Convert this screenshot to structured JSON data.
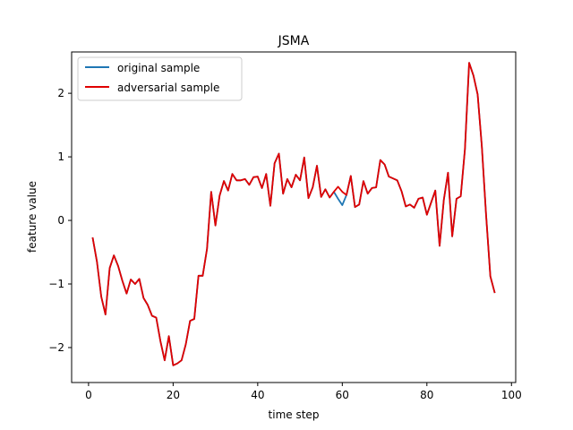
{
  "chart_data": {
    "type": "line",
    "title": "JSMA",
    "xlabel": "time step",
    "ylabel": "feature value",
    "xlim": [
      -4,
      101
    ],
    "ylim": [
      -2.55,
      2.65
    ],
    "xticks": [
      0,
      20,
      40,
      60,
      80,
      100
    ],
    "xtick_labels": [
      "0",
      "20",
      "40",
      "60",
      "80",
      "100"
    ],
    "yticks": [
      -2,
      -1,
      0,
      1,
      2
    ],
    "ytick_labels": [
      "−2",
      "−1",
      "0",
      "1",
      "2"
    ],
    "grid": false,
    "legend_position": "upper-left",
    "series": [
      {
        "name": "original sample",
        "color": "#1f77b4",
        "x": [
          1,
          2,
          3,
          4,
          5,
          6,
          7,
          8,
          9,
          10,
          11,
          12,
          13,
          14,
          15,
          16,
          17,
          18,
          19,
          20,
          21,
          22,
          23,
          24,
          25,
          26,
          27,
          28,
          29,
          30,
          31,
          32,
          33,
          34,
          35,
          36,
          37,
          38,
          39,
          40,
          41,
          42,
          43,
          44,
          45,
          46,
          47,
          48,
          49,
          50,
          51,
          52,
          53,
          54,
          55,
          56,
          57,
          58,
          59,
          60,
          61,
          62,
          63,
          64,
          65,
          66,
          67,
          68,
          69,
          70,
          71,
          72,
          73,
          74,
          75,
          76,
          77,
          78,
          79,
          80,
          81,
          82,
          83,
          84,
          85,
          86,
          87,
          88,
          89,
          90,
          91,
          92,
          93,
          94,
          95,
          96
        ],
        "values": [
          -0.28,
          -0.65,
          -1.2,
          -1.48,
          -0.75,
          -0.55,
          -0.72,
          -0.95,
          -1.15,
          -0.93,
          -1.0,
          -0.92,
          -1.22,
          -1.33,
          -1.5,
          -1.53,
          -1.9,
          -2.2,
          -1.82,
          -2.28,
          -2.25,
          -2.2,
          -1.95,
          -1.58,
          -1.55,
          -0.87,
          -0.87,
          -0.45,
          0.45,
          -0.08,
          0.39,
          0.62,
          0.47,
          0.73,
          0.63,
          0.63,
          0.65,
          0.56,
          0.68,
          0.69,
          0.51,
          0.73,
          0.23,
          0.9,
          1.05,
          0.42,
          0.65,
          0.52,
          0.72,
          0.63,
          0.99,
          0.35,
          0.52,
          0.86,
          0.37,
          0.49,
          0.36,
          0.45,
          0.34,
          0.24,
          0.4,
          0.7,
          0.21,
          0.25,
          0.62,
          0.42,
          0.51,
          0.52,
          0.95,
          0.88,
          0.69,
          0.66,
          0.63,
          0.46,
          0.22,
          0.25,
          0.2,
          0.34,
          0.36,
          0.09,
          0.28,
          0.47,
          -0.4,
          0.32,
          0.75,
          -0.25,
          0.34,
          0.38,
          1.12,
          2.48,
          2.28,
          1.98,
          1.16,
          0.09,
          -0.88,
          -1.13
        ]
      },
      {
        "name": "adversarial sample",
        "color": "#e00000",
        "x": [
          1,
          2,
          3,
          4,
          5,
          6,
          7,
          8,
          9,
          10,
          11,
          12,
          13,
          14,
          15,
          16,
          17,
          18,
          19,
          20,
          21,
          22,
          23,
          24,
          25,
          26,
          27,
          28,
          29,
          30,
          31,
          32,
          33,
          34,
          35,
          36,
          37,
          38,
          39,
          40,
          41,
          42,
          43,
          44,
          45,
          46,
          47,
          48,
          49,
          50,
          51,
          52,
          53,
          54,
          55,
          56,
          57,
          58,
          59,
          60,
          61,
          62,
          63,
          64,
          65,
          66,
          67,
          68,
          69,
          70,
          71,
          72,
          73,
          74,
          75,
          76,
          77,
          78,
          79,
          80,
          81,
          82,
          83,
          84,
          85,
          86,
          87,
          88,
          89,
          90,
          91,
          92,
          93,
          94,
          95,
          96
        ],
        "values": [
          -0.28,
          -0.65,
          -1.2,
          -1.48,
          -0.75,
          -0.55,
          -0.72,
          -0.95,
          -1.15,
          -0.93,
          -1.0,
          -0.92,
          -1.22,
          -1.33,
          -1.5,
          -1.53,
          -1.9,
          -2.2,
          -1.82,
          -2.28,
          -2.25,
          -2.2,
          -1.95,
          -1.58,
          -1.55,
          -0.87,
          -0.87,
          -0.45,
          0.45,
          -0.08,
          0.39,
          0.62,
          0.47,
          0.73,
          0.63,
          0.63,
          0.65,
          0.56,
          0.68,
          0.69,
          0.51,
          0.73,
          0.23,
          0.9,
          1.05,
          0.42,
          0.65,
          0.52,
          0.72,
          0.63,
          0.99,
          0.35,
          0.52,
          0.86,
          0.37,
          0.49,
          0.36,
          0.45,
          0.53,
          0.45,
          0.4,
          0.7,
          0.21,
          0.25,
          0.62,
          0.42,
          0.51,
          0.52,
          0.95,
          0.88,
          0.69,
          0.66,
          0.63,
          0.46,
          0.22,
          0.25,
          0.2,
          0.34,
          0.36,
          0.09,
          0.28,
          0.47,
          -0.4,
          0.32,
          0.75,
          -0.25,
          0.34,
          0.38,
          1.12,
          2.48,
          2.28,
          1.98,
          1.16,
          0.09,
          -0.88,
          -1.13
        ]
      }
    ]
  }
}
